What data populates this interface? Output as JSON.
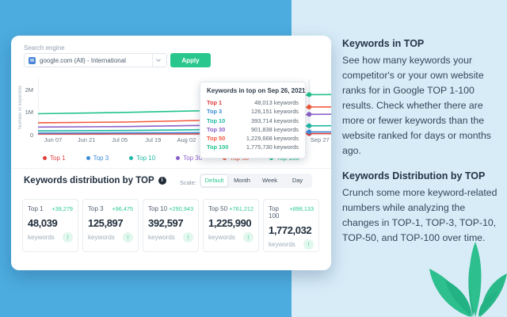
{
  "colors": {
    "bg_left": "#4dacdf",
    "bg_right": "#d8ecf8",
    "accent_green": "#29c78e",
    "change_green": "#2fcb96",
    "plant_green": "#2ebf8e"
  },
  "search": {
    "label": "Search engine",
    "value": "google.com (All) - International",
    "apply": "Apply"
  },
  "chart_data": {
    "type": "line",
    "ylabel": "Number of keywords",
    "ylim": [
      0,
      2000000
    ],
    "y_ticks": [
      "2M",
      "1M",
      "0"
    ],
    "x_ticks": [
      "Jun 07",
      "Jun 21",
      "Jul 05",
      "Jul 19",
      "Aug 02",
      "Aug 16",
      "Aug 30",
      "Sep 13",
      "Sep 27"
    ],
    "hover_date": "Sep 26, 2021",
    "hover_x_frac": 0.925,
    "legend_position": "bottom",
    "grid": false,
    "series": [
      {
        "name": "Top 1",
        "color": "#e03e3e",
        "value_sep26": 48013,
        "points": [
          [
            0,
            0.032
          ],
          [
            0.3,
            0.034
          ],
          [
            0.55,
            0.038
          ],
          [
            0.75,
            0.043
          ],
          [
            0.925,
            0.048
          ],
          [
            1,
            0.0482
          ]
        ]
      },
      {
        "name": "Top 3",
        "color": "#3e8ed9",
        "value_sep26": 126151,
        "points": [
          [
            0,
            0.075
          ],
          [
            0.3,
            0.08
          ],
          [
            0.55,
            0.09
          ],
          [
            0.75,
            0.105
          ],
          [
            0.925,
            0.1262
          ],
          [
            1,
            0.127
          ]
        ]
      },
      {
        "name": "Top 10",
        "color": "#1fb9a5",
        "value_sep26": 393714,
        "points": [
          [
            0,
            0.17
          ],
          [
            0.3,
            0.185
          ],
          [
            0.55,
            0.22
          ],
          [
            0.75,
            0.3
          ],
          [
            0.925,
            0.3937
          ],
          [
            1,
            0.395
          ]
        ]
      },
      {
        "name": "Top 30",
        "color": "#8a60c8",
        "value_sep26": 901838,
        "points": [
          [
            0,
            0.34
          ],
          [
            0.3,
            0.36
          ],
          [
            0.55,
            0.41
          ],
          [
            0.75,
            0.63
          ],
          [
            0.925,
            0.9018
          ],
          [
            1,
            0.905
          ]
        ]
      },
      {
        "name": "Top 50",
        "color": "#f2593d",
        "value_sep26": 1229668,
        "points": [
          [
            0,
            0.53
          ],
          [
            0.3,
            0.56
          ],
          [
            0.55,
            0.63
          ],
          [
            0.75,
            0.92
          ],
          [
            0.925,
            1.2297
          ],
          [
            1,
            1.233
          ]
        ]
      },
      {
        "name": "Top 100",
        "color": "#21c38c",
        "value_sep26": 1775730,
        "points": [
          [
            0,
            0.93
          ],
          [
            0.3,
            0.99
          ],
          [
            0.55,
            1.06
          ],
          [
            0.75,
            1.35
          ],
          [
            0.925,
            1.7757
          ],
          [
            1,
            1.78
          ]
        ]
      }
    ]
  },
  "tooltip": {
    "title": "Keywords in top on Sep 26, 2021",
    "rows": [
      {
        "label": "Top 1",
        "value": "48,013 keywords"
      },
      {
        "label": "Top 3",
        "value": "126,151 keywords"
      },
      {
        "label": "Top 10",
        "value": "393,714 keywords"
      },
      {
        "label": "Top 30",
        "value": "901,838 keywords"
      },
      {
        "label": "Top 50",
        "value": "1,229,668 keywords"
      },
      {
        "label": "Top 100",
        "value": "1,775,730 keywords"
      }
    ]
  },
  "distribution": {
    "title": "Keywords distribution by TOP",
    "scale_label": "Scale:",
    "scales": [
      "Default",
      "Month",
      "Week",
      "Day"
    ],
    "active_scale": "Default",
    "cards": [
      {
        "label": "Top 1",
        "change": "+38,279",
        "value": "48,039",
        "unit": "keywords"
      },
      {
        "label": "Top 3",
        "change": "+96,475",
        "value": "125,897",
        "unit": "keywords"
      },
      {
        "label": "Top 10",
        "change": "+290,943",
        "value": "392,597",
        "unit": "keywords"
      },
      {
        "label": "Top 50",
        "change": "+761,212",
        "value": "1,225,990",
        "unit": "keywords"
      },
      {
        "label": "Top 100",
        "change": "+898,133",
        "value": "1,772,032",
        "unit": "keywords"
      }
    ]
  },
  "side": {
    "sections": [
      {
        "heading": "Keywords in TOP",
        "body": "See how many keywords your competitor's or your own website ranks for in Google TOP 1-100 results. Check whether there are more or fewer keywords than the website ranked for days or months ago."
      },
      {
        "heading": "Keywords Distribution by TOP",
        "body": "Crunch some more keyword-related numbers while analyzing the changes in TOP-1, TOP-3, TOP-10, TOP-50, and TOP-100 over time."
      }
    ]
  }
}
